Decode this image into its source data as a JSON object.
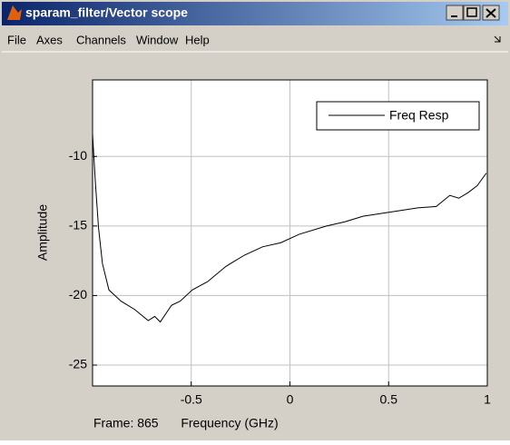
{
  "window": {
    "title": "sparam_filter/Vector scope",
    "menu": [
      "File",
      "Axes",
      "Channels",
      "Window",
      "Help"
    ]
  },
  "frame_label": "Frame: 865",
  "chart_data": {
    "type": "line",
    "xlabel": "Frequency (GHz)",
    "ylabel": "Amplitude",
    "x": [
      -1.0,
      -0.986,
      -0.97,
      -0.95,
      -0.917,
      -0.856,
      -0.787,
      -0.718,
      -0.685,
      -0.657,
      -0.6,
      -0.556,
      -0.495,
      -0.417,
      -0.324,
      -0.231,
      -0.139,
      -0.046,
      0.046,
      0.185,
      0.278,
      0.37,
      0.509,
      0.648,
      0.741,
      0.81,
      0.856,
      0.903,
      0.949,
      0.995
    ],
    "series": [
      {
        "name": "Freq Resp",
        "color": "#000000",
        "values": [
          -8.4,
          -11.8,
          -15.1,
          -17.7,
          -19.6,
          -20.4,
          -21.0,
          -21.8,
          -21.5,
          -21.9,
          -20.7,
          -20.4,
          -19.6,
          -19.0,
          -17.9,
          -17.1,
          -16.5,
          -16.2,
          -15.6,
          -15.0,
          -14.7,
          -14.3,
          -14.0,
          -13.7,
          -13.6,
          -12.8,
          -13.0,
          -12.6,
          -12.1,
          -11.2
        ]
      }
    ],
    "xlim": [
      -1,
      1
    ],
    "xticks": [
      -0.5,
      0,
      0.5,
      1
    ],
    "ylim": [
      -26.5,
      -4.5
    ],
    "yticks": [
      -25,
      -20,
      -15,
      -10
    ],
    "grid": true,
    "legend": "northeast"
  }
}
